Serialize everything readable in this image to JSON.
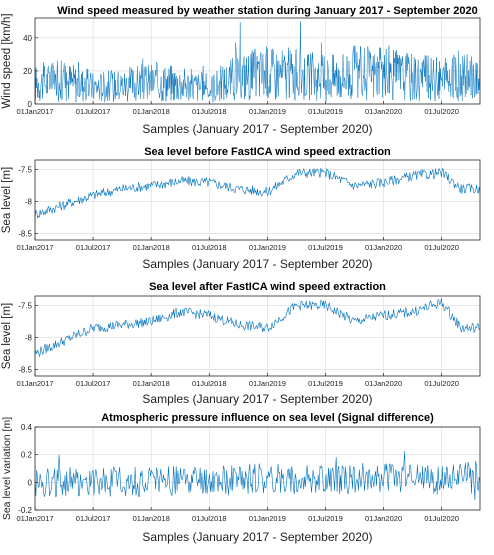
{
  "colors": {
    "series": "#0072bd",
    "axis": "#262626",
    "grid": "#d9d9d9"
  },
  "chart_data": [
    {
      "type": "line",
      "title": "Wind speed measured by weather station during January 2017 - September 2020",
      "xlabel": "Samples (January 2017 - September 2020)",
      "ylabel": "Wind speed [km/h]",
      "xticks": [
        "01Jan2017",
        "01Jul2017",
        "01Jan2018",
        "01Jul2018",
        "01Jan2019",
        "01Jul2019",
        "01Jan2020",
        "01Jul2020"
      ],
      "yticks": [
        "0",
        "20",
        "40"
      ],
      "ylim": [
        0,
        52
      ],
      "grid": true,
      "series": [
        {
          "x": [
            "2017-01",
            "2017-04",
            "2017-07",
            "2017-10",
            "2018-01",
            "2018-04",
            "2018-07",
            "2018-10",
            "2019-01",
            "2019-04",
            "2019-07",
            "2019-10",
            "2020-01",
            "2020-04",
            "2020-07",
            "2020-09"
          ],
          "values": [
            12,
            14,
            10,
            11,
            13,
            12,
            9,
            16,
            18,
            17,
            15,
            18,
            17,
            16,
            14,
            15
          ]
        }
      ]
    },
    {
      "type": "line",
      "title": "Sea level before FastICA wind speed extraction",
      "xlabel": "Samples (January 2017 - September 2020)",
      "ylabel": "Sea level [m]",
      "xticks": [
        "01Jan2017",
        "01Jul2017",
        "01Jan2018",
        "01Jul2018",
        "01Jan2019",
        "01Jul2019",
        "01Jan2020",
        "01Jul2020"
      ],
      "yticks": [
        "-7.5",
        "-8",
        "-8.5"
      ],
      "ylim": [
        -8.6,
        -7.35
      ],
      "grid": true,
      "series": [
        {
          "x": [
            "2017-01",
            "2017-04",
            "2017-07",
            "2017-10",
            "2018-01",
            "2018-04",
            "2018-07",
            "2018-10",
            "2019-01",
            "2019-04",
            "2019-07",
            "2019-10",
            "2020-01",
            "2020-04",
            "2020-07",
            "2020-09"
          ],
          "values": [
            -8.2,
            -8.05,
            -7.9,
            -7.8,
            -7.75,
            -7.68,
            -7.7,
            -7.8,
            -7.85,
            -7.55,
            -7.55,
            -7.75,
            -7.7,
            -7.6,
            -7.55,
            -7.8
          ]
        }
      ]
    },
    {
      "type": "line",
      "title": "Sea level after FastICA wind speed extraction",
      "xlabel": "Samples (January 2017 - September 2020)",
      "ylabel": "Sea level [m]",
      "xticks": [
        "01Jan2017",
        "01Jul2017",
        "01Jan2018",
        "01Jul2018",
        "01Jan2019",
        "01Jul2019",
        "01Jan2020",
        "01Jul2020"
      ],
      "yticks": [
        "-7.5",
        "-8",
        "-8.5"
      ],
      "ylim": [
        -8.6,
        -7.35
      ],
      "grid": true,
      "series": [
        {
          "x": [
            "2017-01",
            "2017-04",
            "2017-07",
            "2017-10",
            "2018-01",
            "2018-04",
            "2018-07",
            "2018-10",
            "2019-01",
            "2019-04",
            "2019-07",
            "2019-10",
            "2020-01",
            "2020-04",
            "2020-07",
            "2020-09"
          ],
          "values": [
            -8.25,
            -8.05,
            -7.85,
            -7.8,
            -7.75,
            -7.6,
            -7.65,
            -7.8,
            -7.85,
            -7.5,
            -7.5,
            -7.75,
            -7.65,
            -7.6,
            -7.45,
            -7.85
          ]
        }
      ]
    },
    {
      "type": "line",
      "title": "Atmospheric pressure influence on sea level (Signal difference)",
      "xlabel": "Samples (January 2017 - September 2020)",
      "ylabel": "Sea level variation [m]",
      "xticks": [
        "01Jan2017",
        "01Jul2017",
        "01Jan2018",
        "01Jul2018",
        "01Jan2019",
        "01Jul2019",
        "01Jan2020",
        "01Jul2020"
      ],
      "yticks": [
        "0.4",
        "0.2",
        "0",
        "-0.2"
      ],
      "ylim": [
        -0.2,
        0.4
      ],
      "grid": true,
      "series": [
        {
          "x": [
            "2017-01",
            "2017-04",
            "2017-07",
            "2017-10",
            "2018-01",
            "2018-04",
            "2018-07",
            "2018-10",
            "2019-01",
            "2019-04",
            "2019-07",
            "2019-10",
            "2020-01",
            "2020-04",
            "2020-07",
            "2020-09"
          ],
          "values": [
            0.0,
            0.01,
            0.0,
            0.01,
            0.0,
            0.01,
            0.0,
            0.02,
            0.03,
            0.02,
            0.01,
            0.03,
            0.04,
            0.03,
            0.02,
            0.05
          ]
        }
      ]
    }
  ]
}
